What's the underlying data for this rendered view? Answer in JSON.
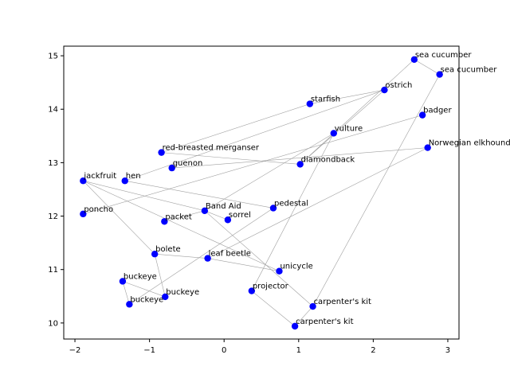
{
  "chart_data": {
    "type": "scatter",
    "title": "",
    "xlabel": "",
    "ylabel": "",
    "xlim": [
      -2.15,
      3.15
    ],
    "ylim": [
      9.7,
      15.18
    ],
    "xticks": [
      -2,
      -1,
      0,
      1,
      2,
      3
    ],
    "yticks": [
      10,
      11,
      12,
      13,
      14,
      15
    ],
    "grid": false,
    "marker_color": "#0000ff",
    "edge_color": "#a0a0a0",
    "points": [
      {
        "label": "sea cucumber",
        "x": 2.55,
        "y": 14.93
      },
      {
        "label": "sea cucumber",
        "x": 2.89,
        "y": 14.65
      },
      {
        "label": "ostrich",
        "x": 2.15,
        "y": 14.36
      },
      {
        "label": "starfish",
        "x": 1.15,
        "y": 14.1
      },
      {
        "label": "badger",
        "x": 2.66,
        "y": 13.89
      },
      {
        "label": "vulture",
        "x": 1.47,
        "y": 13.55
      },
      {
        "label": "Norwegian elkhound",
        "x": 2.73,
        "y": 13.28
      },
      {
        "label": "red-breasted merganser",
        "x": -0.84,
        "y": 13.19
      },
      {
        "label": "diamondback",
        "x": 1.02,
        "y": 12.97
      },
      {
        "label": "guenon",
        "x": -0.7,
        "y": 12.9
      },
      {
        "label": "jackfruit",
        "x": -1.89,
        "y": 12.66
      },
      {
        "label": "hen",
        "x": -1.33,
        "y": 12.66
      },
      {
        "label": "Band Aid",
        "x": -0.26,
        "y": 12.1
      },
      {
        "label": "pedestal",
        "x": 0.66,
        "y": 12.15
      },
      {
        "label": "poncho",
        "x": -1.89,
        "y": 12.04
      },
      {
        "label": "sorrel",
        "x": 0.05,
        "y": 11.93
      },
      {
        "label": "packet",
        "x": -0.8,
        "y": 11.9
      },
      {
        "label": "bolete",
        "x": -0.93,
        "y": 11.29
      },
      {
        "label": "leaf beetle",
        "x": -0.22,
        "y": 11.21
      },
      {
        "label": "unicycle",
        "x": 0.74,
        "y": 10.97
      },
      {
        "label": "buckeye",
        "x": -1.36,
        "y": 10.78
      },
      {
        "label": "projector",
        "x": 0.37,
        "y": 10.6
      },
      {
        "label": "buckeye",
        "x": -0.79,
        "y": 10.49
      },
      {
        "label": "buckeye",
        "x": -1.27,
        "y": 10.35
      },
      {
        "label": "carpenter's kit",
        "x": 1.19,
        "y": 10.31
      },
      {
        "label": "carpenter's kit",
        "x": 0.95,
        "y": 9.94
      }
    ],
    "edges": [
      [
        0,
        1
      ],
      [
        0,
        8
      ],
      [
        1,
        24
      ],
      [
        2,
        8
      ],
      [
        2,
        11
      ],
      [
        2,
        3
      ],
      [
        3,
        7
      ],
      [
        4,
        14
      ],
      [
        5,
        12
      ],
      [
        5,
        21
      ],
      [
        6,
        9
      ],
      [
        6,
        18
      ],
      [
        7,
        8
      ],
      [
        10,
        17
      ],
      [
        10,
        19
      ],
      [
        10,
        12
      ],
      [
        11,
        13
      ],
      [
        12,
        16
      ],
      [
        13,
        23
      ],
      [
        15,
        12
      ],
      [
        17,
        18
      ],
      [
        17,
        22
      ],
      [
        19,
        18
      ],
      [
        20,
        22
      ],
      [
        20,
        23
      ],
      [
        21,
        25
      ],
      [
        24,
        12
      ],
      [
        25,
        24
      ]
    ]
  }
}
